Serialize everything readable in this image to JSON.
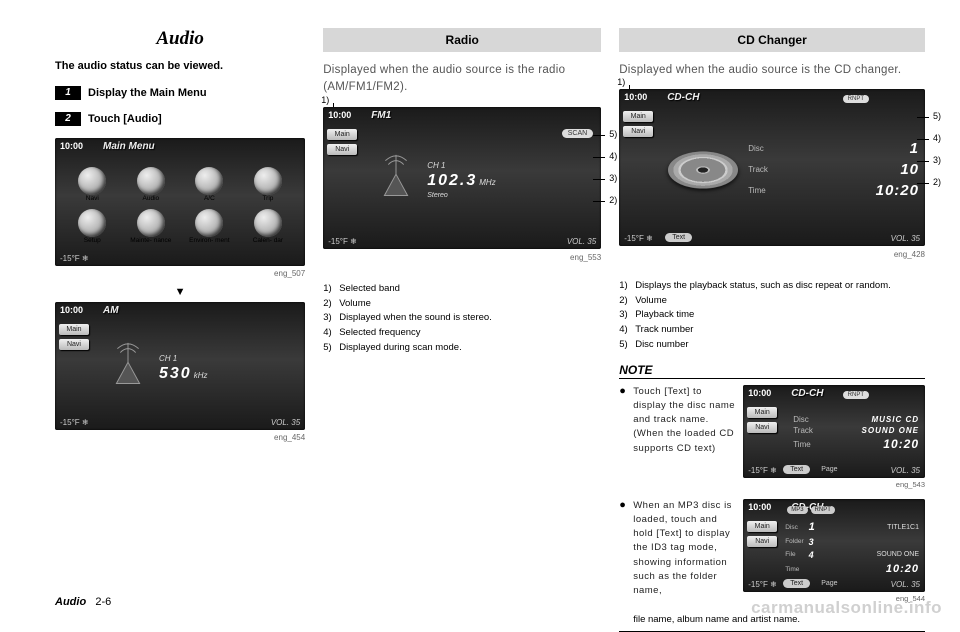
{
  "page": {
    "footer_section": "Audio",
    "footer_page": "2-6",
    "watermark": "carmanualsonline.info"
  },
  "col1": {
    "title": "Audio",
    "intro": "The audio status can be viewed.",
    "step1_num": "1",
    "step1_txt": "Display the Main Menu",
    "step2_num": "2",
    "step2_txt": "Touch [Audio]",
    "screen1": {
      "clock": "10:00",
      "title": "Main Menu",
      "temp": "-15°F ❄",
      "items": [
        "Navi",
        "Audio",
        "A/C",
        "Trip",
        "Setup",
        "Mainte-\nnance",
        "Environ-\nment",
        "Calen-\ndar"
      ],
      "caption": "eng_507"
    },
    "triangle": "▼",
    "screen2": {
      "clock": "10:00",
      "title": "AM",
      "main": "Main",
      "navi": "Navi",
      "ch": "CH 1",
      "freq": "530",
      "unit": "kHz",
      "temp": "-15°F ❄",
      "vol": "VOL. 35",
      "caption": "eng_454"
    }
  },
  "col2": {
    "head": "Radio",
    "desc": "Displayed when the audio source is the radio (AM/FM1/FM2).",
    "screen": {
      "clock": "10:00",
      "title": "FM1",
      "main": "Main",
      "navi": "Navi",
      "scan": "SCAN",
      "ch": "CH 1",
      "freq": "102.3",
      "unit": "MHz",
      "stereo": "Stereo",
      "temp": "-15°F ❄",
      "vol": "VOL. 35",
      "caption": "eng_553"
    },
    "co": {
      "c1": "1)",
      "c2": "2)",
      "c3": "3)",
      "c4": "4)",
      "c5": "5)"
    },
    "legend": [
      "Selected band",
      "Volume",
      "Displayed when the sound is stereo.",
      "Selected frequency",
      "Displayed during scan mode."
    ]
  },
  "col3": {
    "head": "CD Changer",
    "desc": "Displayed when the audio source is the CD changer.",
    "screen": {
      "clock": "10:00",
      "title": "CD-CH",
      "main": "Main",
      "navi": "Navi",
      "rnpt": "RNPT",
      "row_disc": "Disc",
      "val_disc": "1",
      "row_track": "Track",
      "val_track": "10",
      "row_time": "Time",
      "val_time": "10:20",
      "text_btn": "Text",
      "temp": "-15°F ❄",
      "vol": "VOL. 35",
      "caption": "eng_428"
    },
    "co": {
      "c1": "1)",
      "c2": "2)",
      "c3": "3)",
      "c4": "4)",
      "c5": "5)"
    },
    "legend": [
      "Displays the playback status, such as disc repeat or random.",
      "Volume",
      "Playback time",
      "Track number",
      "Disc number"
    ],
    "note_head": "NOTE",
    "note1": {
      "text": "Touch [Text] to display the disc name and track name. (When the loaded CD supports CD text)",
      "screen": {
        "clock": "10:00",
        "title": "CD-CH",
        "main": "Main",
        "navi": "Navi",
        "rnpt": "RNPT",
        "row_disc": "Disc",
        "val_disc": "MUSIC CD",
        "row_track": "Track",
        "val_track": "SOUND ONE",
        "row_time": "Time",
        "val_time": "10:20",
        "text_btn": "Text",
        "page": "Page",
        "temp": "-15°F ❄",
        "vol": "VOL. 35",
        "caption": "eng_543"
      }
    },
    "note2": {
      "text": "When an MP3 disc is loaded, touch and hold [Text] to display the ID3 tag mode, showing information such as the folder name,",
      "text_tail": "file name, album name and artist name.",
      "screen": {
        "clock": "10:00",
        "title": "CD-CH",
        "main": "Main",
        "navi": "Navi",
        "mp3": "MP3",
        "rnpt": "RNPT",
        "l_disc": "Disc",
        "v_disc": "1",
        "l_folder": "Folder",
        "v_folder": "3",
        "r_disc": "TITLE1C1",
        "l_file": "File",
        "v_file": "4",
        "r_file": "SOUND ONE",
        "l_time": "Time",
        "v_time": "10:20",
        "text_btn": "Text",
        "page": "Page",
        "temp": "-15°F ❄",
        "vol": "VOL. 35",
        "caption": "eng_544"
      }
    }
  }
}
